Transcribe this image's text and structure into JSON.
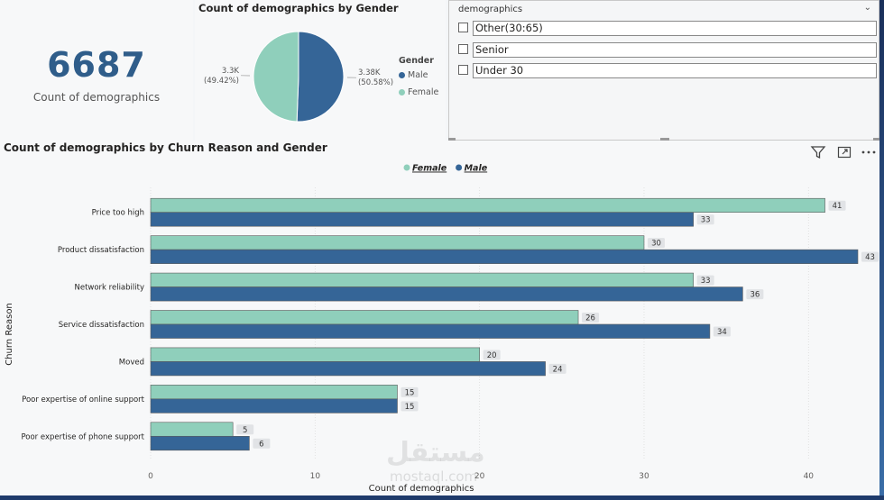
{
  "kpi": {
    "value": "6687",
    "label": "Count of demographics"
  },
  "pie": {
    "title": "Count of demographics by Gender",
    "legend_title": "Gender",
    "legend": [
      {
        "label": "Male",
        "color": "#356597"
      },
      {
        "label": "Female",
        "color": "#8fcfbb"
      }
    ],
    "slices": [
      {
        "name": "Male",
        "value": 3380,
        "label": "3.38K",
        "pct": "(50.58%)",
        "color": "#356597"
      },
      {
        "name": "Female",
        "value": 3300,
        "label": "3.3K",
        "pct": "(49.42%)",
        "color": "#8fcfbb"
      }
    ]
  },
  "slicer": {
    "header": "demographics",
    "items": [
      {
        "label": "Other(30:65)"
      },
      {
        "label": "Senior"
      },
      {
        "label": "Under 30"
      }
    ]
  },
  "bar_chart_title": "Count of demographics by Churn Reason and Gender",
  "watermark": {
    "text": "مستقل",
    "sub": "mostaql.com"
  },
  "chart_data": {
    "type": "bar",
    "orientation": "horizontal",
    "title": "Count of demographics by Churn Reason and Gender",
    "xlabel": "Count of demographics",
    "ylabel": "Churn Reason",
    "categories": [
      "Price too high",
      "Product dissatisfaction",
      "Network reliability",
      "Service dissatisfaction",
      "Moved",
      "Poor expertise of online support",
      "Poor expertise of phone support"
    ],
    "series": [
      {
        "name": "Female",
        "color": "#8fcfbb",
        "values": [
          41,
          30,
          33,
          26,
          20,
          15,
          5
        ]
      },
      {
        "name": "Male",
        "color": "#356597",
        "values": [
          33,
          43,
          36,
          34,
          24,
          15,
          6
        ]
      }
    ],
    "xlim": [
      0,
      43
    ],
    "xticks": [
      0,
      10,
      20,
      30,
      40
    ],
    "grid": true,
    "legend_position": "top-center",
    "data_labels": true
  }
}
